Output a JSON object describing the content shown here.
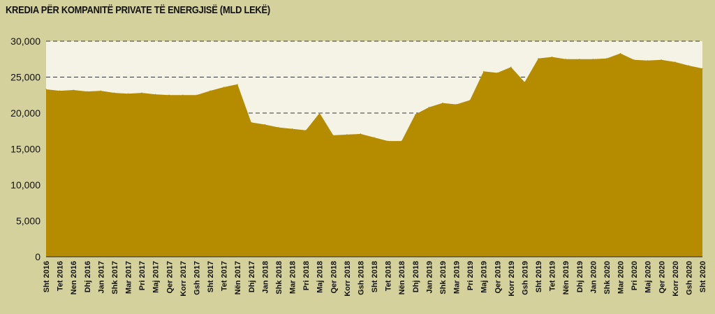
{
  "chart_data": {
    "type": "area",
    "title": "KREDIA PËR KOMPANITË PRIVATE TË ENERGJISË (MLD LEKË)",
    "xlabel": "",
    "ylabel": "",
    "ylim": [
      0,
      30000
    ],
    "yticks": [
      "0",
      "5,000",
      "10,000",
      "15,000",
      "20,000",
      "25,000",
      "30,000"
    ],
    "ytick_values": [
      0,
      5000,
      10000,
      15000,
      20000,
      25000,
      30000
    ],
    "grid": "horizontal dashed",
    "categories": [
      "Sht 2016",
      "Tet 2016",
      "Nen 2016",
      "Dhj 2016",
      "Jan 2017",
      "Shk 2017",
      "Mar 2017",
      "Pri 2017",
      "Maj 2017",
      "Qer 2017",
      "Korr 2017",
      "Gsh 2017",
      "Sht 2017",
      "Tet 2017",
      "Nën 2017",
      "Dhj 2017",
      "Jan 2018",
      "Shk 2018",
      "Mar 2018",
      "Pri 2018",
      "Maj 2018",
      "Qer 2018",
      "Korr 2018",
      "Gsh 2018",
      "Sht 2018",
      "Tet 2018",
      "Nën 2018",
      "Dhj 2018",
      "Jan 2019",
      "Shk 2019",
      "Mar 2019",
      "Pri 2019",
      "Maj 2019",
      "Qer 2019",
      "Korr 2019",
      "Gsh 2019",
      "Sht 2019",
      "Tet 2019",
      "Nën 2019",
      "Dhj 2019",
      "Jan 2020",
      "Shk 2020",
      "Mar 2020",
      "Pri 2020",
      "Maj 2020",
      "Qer 2020",
      "Korr 2020",
      "Gsh 2020",
      "Sht 2020"
    ],
    "values": [
      23300,
      23100,
      23200,
      23000,
      23100,
      22800,
      22700,
      22800,
      22600,
      22500,
      22500,
      22500,
      23100,
      23600,
      24000,
      18700,
      18400,
      18000,
      17800,
      17600,
      20000,
      16900,
      17000,
      17100,
      16600,
      16100,
      16100,
      19800,
      20800,
      21400,
      21200,
      21800,
      25800,
      25600,
      26400,
      24300,
      27600,
      27800,
      27500,
      27500,
      27500,
      27600,
      28300,
      27400,
      27300,
      27400,
      27100,
      26600,
      26200
    ],
    "colors": {
      "area": "#b58b00",
      "plot_background": "#f4f3e6",
      "page_background": "#d4d19c"
    }
  }
}
